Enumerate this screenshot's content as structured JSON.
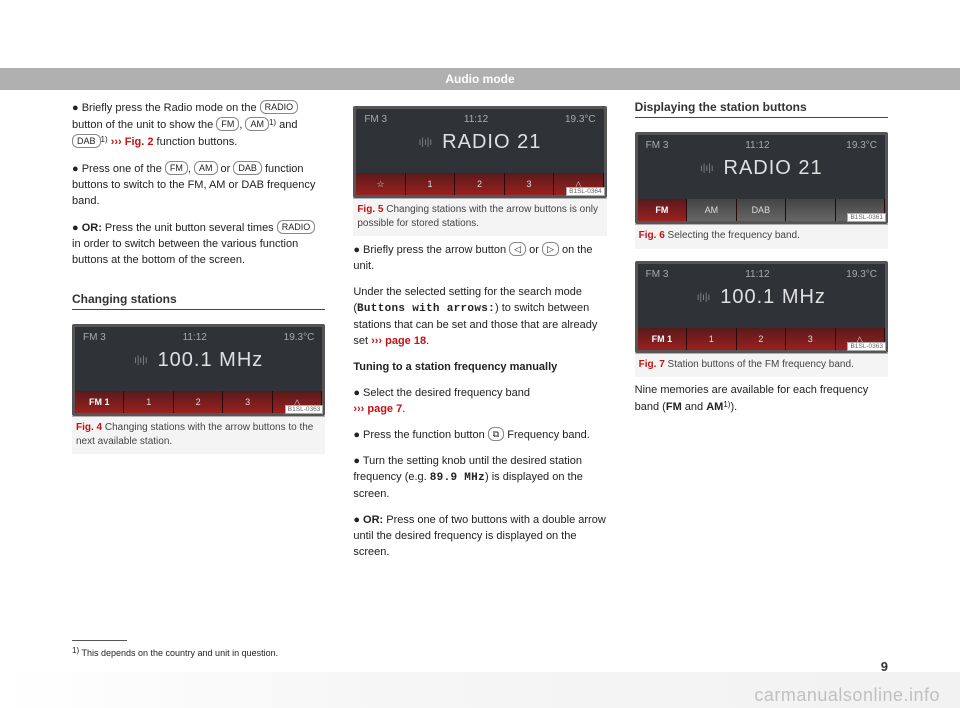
{
  "page_header": "Audio mode",
  "page_number": "9",
  "footnote_sup": "1)",
  "footnote_text": "This depends on the country and unit in question.",
  "watermark": "carmanualsonline.info",
  "pills": {
    "radio": "RADIO",
    "fm": "FM",
    "am": "AM",
    "dab": "DAB",
    "left": "◁",
    "right": "▷",
    "freq": "⧉"
  },
  "col1": {
    "p1_a": "Briefly press the Radio mode on the ",
    "p1_b": " button of the unit to show the ",
    "p1_c": ", ",
    "p1_sup1": "1)",
    "p1_d": " and ",
    "p1_sup2": "1)",
    "p1_link": "››› Fig. 2",
    "p1_e": " function buttons.",
    "p2_a": "Press one of the ",
    "p2_b": ", ",
    "p2_c": " or ",
    "p2_d": " function buttons to switch to the FM, AM or DAB frequency band.",
    "p3_bold": "OR:",
    "p3_a": " Press the unit button several times ",
    "p3_b": " in order to switch between the various function buttons at the bottom of the screen.",
    "section_title": "Changing stations",
    "fig4": {
      "code": "B1SL-0363",
      "caption_label": "Fig. 4",
      "caption_text": "   Changing stations with the arrow buttons to the next available station.",
      "screen": {
        "top_left": "FM 3",
        "top_center": "11:12",
        "top_right": "19.3°C",
        "main": "100.1 MHz",
        "buttons": [
          "FM 1",
          "1",
          "2",
          "3",
          "△"
        ],
        "button_styles": [
          "active",
          "",
          "",
          "",
          ""
        ]
      }
    }
  },
  "col2": {
    "fig5": {
      "code": "B1SL-0364",
      "caption_label": "Fig. 5",
      "caption_text": "   Changing stations with the arrow buttons is only possible for stored stations.",
      "screen": {
        "top_left": "FM 3",
        "top_center": "11:12",
        "top_right": "19.3°C",
        "main": "RADIO 21",
        "buttons": [
          "☆",
          "1",
          "2",
          "3",
          "△"
        ],
        "button_styles": [
          "",
          "",
          "",
          "",
          ""
        ]
      }
    },
    "p1_a": "Briefly press the arrow button ",
    "p1_b": " or ",
    "p1_c": " on the unit.",
    "p2_a": "Under the selected setting for the search mode (",
    "p2_mono": "Buttons with arrows:",
    "p2_b": ") to switch between stations that can be set and those that are already set ",
    "p2_link": "››› page 18",
    "p2_c": ".",
    "h1": "Tuning to a station frequency manually",
    "p3_a": "Select the desired frequency band ",
    "p3_link": "››› page 7",
    "p3_b": ".",
    "p4_a": "Press the function button ",
    "p4_b": " Frequency band.",
    "p5_a": "Turn the setting knob until the desired station frequency (e.g. ",
    "p5_mono": "89.9 MHz",
    "p5_b": ") is displayed on the screen.",
    "p6_bold": "OR:",
    "p6_a": " Press one of two buttons with a double arrow until the desired frequency is displayed on the screen."
  },
  "col3": {
    "section_title": "Displaying the station buttons",
    "fig6": {
      "code": "B1SL-0361",
      "caption_label": "Fig. 6",
      "caption_text": "   Selecting the frequency band.",
      "screen": {
        "top_left": "FM 3",
        "top_center": "11:12",
        "top_right": "19.3°C",
        "main": "RADIO 21",
        "buttons": [
          "FM",
          "AM",
          "DAB",
          "",
          ""
        ],
        "button_styles": [
          "active",
          "gray",
          "gray",
          "gray",
          "gray"
        ]
      }
    },
    "fig7": {
      "code": "B1SL-0363",
      "caption_label": "Fig. 7",
      "caption_text": "   Station buttons of the FM frequency band.",
      "screen": {
        "top_left": "FM 3",
        "top_center": "11:12",
        "top_right": "19.3°C",
        "main": "100.1 MHz",
        "buttons": [
          "FM 1",
          "1",
          "2",
          "3",
          "△"
        ],
        "button_styles": [
          "active",
          "",
          "",
          "",
          ""
        ]
      }
    },
    "p1_a": "Nine memories are available for each frequency band (",
    "p1_b1": "FM",
    "p1_b": " and ",
    "p1_b2": "AM",
    "p1_sup": "1)",
    "p1_c": ")."
  }
}
